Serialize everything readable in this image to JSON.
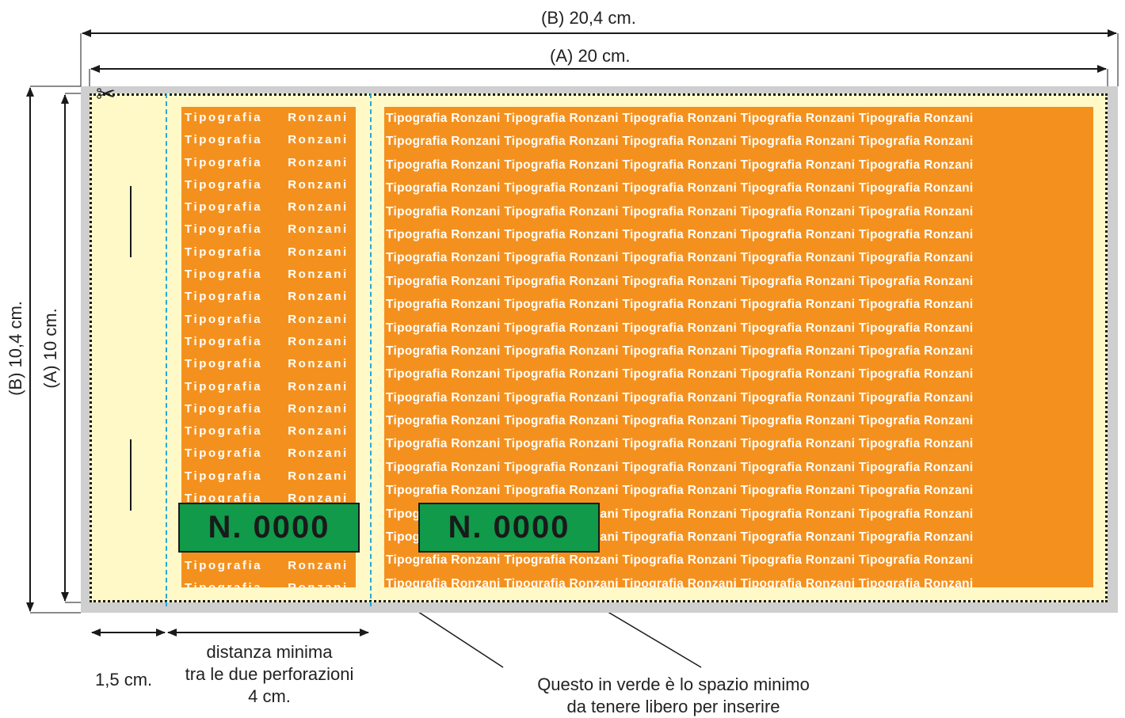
{
  "dimensions": {
    "width_b": "(B) 20,4 cm.",
    "width_a": "(A) 20 cm.",
    "height_b": "(B) 10,4 cm.",
    "height_a": "(A) 10 cm.",
    "stub_width": "1,5 cm.",
    "perforation_distance_line1": "distanza minima",
    "perforation_distance_line2": "tra le due perforazioni",
    "perforation_distance_line3": "4 cm."
  },
  "panel_text": "Tipografia Ronzani",
  "panel_word1": "Tipografia",
  "panel_word2": "Ronzani",
  "number_left": "N. 0000",
  "number_right": "N. 0000",
  "note_line1": "Questo in verde è lo spazio minimo",
  "note_line2": "da tenere libero per inserire",
  "scissors_icon": "✂",
  "colors": {
    "paper": "#fff9c8",
    "bleed": "#cfcfcf",
    "panel": "#f4911e",
    "number_box": "#109a4a",
    "perforation": "#2aa6d6"
  }
}
